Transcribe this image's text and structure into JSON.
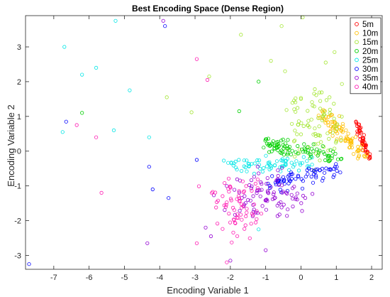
{
  "chart_data": {
    "type": "scatter",
    "title": "Best Encoding Space (Dense Region)",
    "xlabel": "Encoding Variable 1",
    "ylabel": "Encoding Variable 2",
    "xlim": [
      -7.8,
      2.3
    ],
    "ylim": [
      -3.4,
      3.9
    ],
    "xticks": [
      -7,
      -6,
      -5,
      -4,
      -3,
      -2,
      -1,
      0,
      1,
      2
    ],
    "yticks": [
      -3,
      -2,
      -1,
      0,
      1,
      2,
      3
    ],
    "grid": false,
    "legend_position": "top-right",
    "marker": "open-circle",
    "series": [
      {
        "name": "5m",
        "color": "#ff0000",
        "cluster": {
          "type": "line",
          "from": [
            1.55,
            0.9
          ],
          "to": [
            1.92,
            -0.22
          ],
          "spread": 0.05,
          "n": 55
        }
      },
      {
        "name": "10m",
        "color": "#ffbf00",
        "cluster": {
          "type": "line",
          "from": [
            0.55,
            1.15
          ],
          "to": [
            1.85,
            -0.2
          ],
          "spread": 0.13,
          "n": 90
        }
      },
      {
        "name": "15m",
        "color": "#a3e632",
        "cluster": {
          "type": "blob",
          "center": [
            0.3,
            0.7
          ],
          "sd": [
            0.6,
            0.8
          ],
          "n": 85
        },
        "outliers": [
          [
            0.05,
            3.85
          ],
          [
            -0.55,
            3.6
          ],
          [
            -1.7,
            3.35
          ],
          [
            0.7,
            2.55
          ],
          [
            0.95,
            2.85
          ],
          [
            -0.45,
            2.3
          ],
          [
            -0.85,
            2.6
          ],
          [
            -2.6,
            2.15
          ],
          [
            -3.1,
            1.12
          ],
          [
            -3.8,
            1.55
          ]
        ]
      },
      {
        "name": "20m",
        "color": "#00d000",
        "cluster": {
          "type": "line",
          "from": [
            -1.05,
            0.25
          ],
          "to": [
            1.2,
            -0.25
          ],
          "spread": 0.15,
          "n": 90
        },
        "outliers": [
          [
            -0.4,
            3.95
          ],
          [
            -1.2,
            2.0
          ],
          [
            -6.2,
            1.1
          ],
          [
            -1.75,
            1.15
          ]
        ]
      },
      {
        "name": "25m",
        "color": "#00e6e6",
        "cluster": {
          "type": "line",
          "from": [
            -2.2,
            -0.4
          ],
          "to": [
            0.4,
            -0.35
          ],
          "spread": 0.16,
          "n": 70
        },
        "outliers": [
          [
            -6.7,
            3.0
          ],
          [
            -5.25,
            3.75
          ],
          [
            -6.2,
            2.2
          ],
          [
            -5.8,
            2.4
          ],
          [
            -4.85,
            1.75
          ],
          [
            -6.75,
            0.55
          ],
          [
            -5.3,
            0.6
          ],
          [
            -4.3,
            0.4
          ],
          [
            -1.2,
            -2.25
          ]
        ]
      },
      {
        "name": "30m",
        "color": "#0000ff",
        "cluster": {
          "type": "line",
          "from": [
            -1.0,
            -1.0
          ],
          "to": [
            1.05,
            -0.5
          ],
          "spread": 0.18,
          "n": 70
        },
        "outliers": [
          [
            -6.65,
            0.85
          ],
          [
            -3.85,
            3.6
          ],
          [
            -4.3,
            -0.45
          ],
          [
            -4.2,
            -1.1
          ],
          [
            -3.75,
            -1.35
          ],
          [
            -7.7,
            -3.25
          ],
          [
            -2.95,
            -0.25
          ]
        ]
      },
      {
        "name": "35m",
        "color": "#9400d3",
        "cluster": {
          "type": "blob",
          "center": [
            -0.9,
            -1.2
          ],
          "sd": [
            0.75,
            0.45
          ],
          "n": 90
        },
        "outliers": [
          [
            -3.9,
            3.75
          ],
          [
            -4.35,
            -2.65
          ],
          [
            -2.0,
            -3.15
          ],
          [
            -1.0,
            -2.85
          ],
          [
            -2.7,
            -2.2
          ],
          [
            -2.55,
            -2.45
          ]
        ]
      },
      {
        "name": "40m",
        "color": "#ff1ab3",
        "cluster": {
          "type": "blob",
          "center": [
            -1.9,
            -1.6
          ],
          "sd": [
            0.7,
            0.55
          ],
          "n": 70
        },
        "outliers": [
          [
            -6.35,
            0.75
          ],
          [
            -5.8,
            0.4
          ],
          [
            -5.65,
            -1.2
          ],
          [
            -2.95,
            2.65
          ],
          [
            -2.65,
            2.05
          ],
          [
            -2.1,
            -3.2
          ],
          [
            -2.95,
            -2.65
          ]
        ]
      }
    ]
  }
}
